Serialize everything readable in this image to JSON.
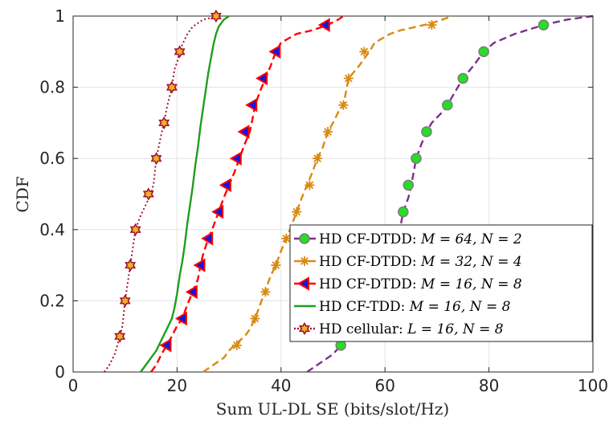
{
  "chart_data": {
    "type": "line",
    "xlabel": "Sum UL-DL SE (bits/slot/Hz)",
    "ylabel": "CDF",
    "xlim": [
      0,
      100
    ],
    "ylim": [
      0,
      1
    ],
    "xticks": [
      "0",
      "20",
      "40",
      "60",
      "80",
      "100"
    ],
    "yticks": [
      "0",
      "0.2",
      "0.4",
      "0.6",
      "0.8",
      "1"
    ],
    "grid": true,
    "legend_position": "lower-right",
    "series": [
      {
        "name": "HD CF-DTDD: M = 64, N = 2",
        "legend": {
          "prefix": "HD CF-DTDD: ",
          "math": "M = 64, N = 2"
        },
        "color": "#7E2F8E",
        "marker": "circle",
        "marker_face": "#22E022",
        "marker_edge": "#7E7E7E",
        "line_style": "dashed",
        "line": [
          [
            45,
            0
          ],
          [
            46,
            0.01
          ],
          [
            48,
            0.03
          ],
          [
            50,
            0.05
          ],
          [
            51.5,
            0.075
          ],
          [
            53,
            0.12
          ],
          [
            55,
            0.18
          ],
          [
            57,
            0.23
          ],
          [
            59,
            0.27
          ],
          [
            60,
            0.3
          ],
          [
            61,
            0.33
          ],
          [
            62,
            0.37
          ],
          [
            63,
            0.41
          ],
          [
            63.5,
            0.45
          ],
          [
            64.5,
            0.49
          ],
          [
            65,
            0.52
          ],
          [
            65.5,
            0.56
          ],
          [
            66,
            0.6
          ],
          [
            67,
            0.64
          ],
          [
            68,
            0.675
          ],
          [
            69,
            0.7
          ],
          [
            71,
            0.73
          ],
          [
            72,
            0.75
          ],
          [
            74,
            0.8
          ],
          [
            75,
            0.825
          ],
          [
            77,
            0.86
          ],
          [
            79,
            0.9
          ],
          [
            81,
            0.925
          ],
          [
            85,
            0.95
          ],
          [
            90.5,
            0.975
          ],
          [
            95,
            0.99
          ],
          [
            100,
            1
          ]
        ],
        "markers": [
          [
            51.5,
            0.075
          ],
          [
            63.5,
            0.45
          ],
          [
            64.5,
            0.525
          ],
          [
            66,
            0.6
          ],
          [
            68,
            0.675
          ],
          [
            72,
            0.75
          ],
          [
            75,
            0.825
          ],
          [
            79,
            0.9
          ],
          [
            90.5,
            0.975
          ]
        ]
      },
      {
        "name": "HD CF-DTDD: M = 32, N = 4",
        "legend": {
          "prefix": "HD CF-DTDD: ",
          "math": "M = 32, N = 4"
        },
        "color": "#D98A10",
        "marker": "asterisk",
        "marker_face": "#D98A10",
        "marker_edge": "#D98A10",
        "line_style": "dashed",
        "line": [
          [
            25,
            0
          ],
          [
            27,
            0.02
          ],
          [
            29,
            0.04
          ],
          [
            30,
            0.06
          ],
          [
            31,
            0.075
          ],
          [
            33,
            0.1
          ],
          [
            34,
            0.12
          ],
          [
            35,
            0.15
          ],
          [
            36,
            0.19
          ],
          [
            37,
            0.23
          ],
          [
            38,
            0.27
          ],
          [
            39,
            0.3
          ],
          [
            40,
            0.34
          ],
          [
            41,
            0.375
          ],
          [
            42,
            0.41
          ],
          [
            43,
            0.45
          ],
          [
            44,
            0.49
          ],
          [
            45,
            0.525
          ],
          [
            46,
            0.56
          ],
          [
            47,
            0.6
          ],
          [
            48,
            0.63
          ],
          [
            49,
            0.675
          ],
          [
            50,
            0.7
          ],
          [
            51,
            0.73
          ],
          [
            52,
            0.75
          ],
          [
            53,
            0.825
          ],
          [
            55,
            0.86
          ],
          [
            57,
            0.9
          ],
          [
            58,
            0.925
          ],
          [
            61,
            0.95
          ],
          [
            63,
            0.96
          ],
          [
            66,
            0.97
          ],
          [
            69,
            0.98
          ],
          [
            71,
            0.99
          ],
          [
            73,
            1
          ]
        ],
        "markers": [
          [
            31.5,
            0.075
          ],
          [
            35,
            0.15
          ],
          [
            37,
            0.225
          ],
          [
            39,
            0.3
          ],
          [
            41,
            0.375
          ],
          [
            43,
            0.45
          ],
          [
            45.5,
            0.525
          ],
          [
            47,
            0.6
          ],
          [
            49,
            0.675
          ],
          [
            52,
            0.75
          ],
          [
            53,
            0.825
          ],
          [
            56,
            0.9
          ],
          [
            69,
            0.975
          ]
        ]
      },
      {
        "name": "HD CF-DTDD: M = 16, N = 8",
        "legend": {
          "prefix": "HD CF-DTDD: ",
          "math": "M = 16, N = 8"
        },
        "color": "#FF0000",
        "marker": "triangle-left",
        "marker_face": "#1515E0",
        "marker_edge": "#FF0000",
        "line_style": "dashed",
        "line": [
          [
            15,
            0
          ],
          [
            16,
            0.02
          ],
          [
            17,
            0.05
          ],
          [
            18,
            0.075
          ],
          [
            19,
            0.1
          ],
          [
            20,
            0.13
          ],
          [
            21,
            0.15
          ],
          [
            22,
            0.19
          ],
          [
            23,
            0.225
          ],
          [
            24,
            0.26
          ],
          [
            24.5,
            0.3
          ],
          [
            25,
            0.33
          ],
          [
            26,
            0.375
          ],
          [
            27,
            0.41
          ],
          [
            28,
            0.45
          ],
          [
            29,
            0.49
          ],
          [
            30,
            0.525
          ],
          [
            31,
            0.56
          ],
          [
            32,
            0.6
          ],
          [
            33,
            0.64
          ],
          [
            34,
            0.675
          ],
          [
            34.5,
            0.71
          ],
          [
            35,
            0.75
          ],
          [
            36,
            0.79
          ],
          [
            37,
            0.825
          ],
          [
            38,
            0.86
          ],
          [
            39,
            0.9
          ],
          [
            40,
            0.925
          ],
          [
            43,
            0.95
          ],
          [
            46,
            0.96
          ],
          [
            49,
            0.975
          ],
          [
            51,
            0.99
          ],
          [
            52,
            1
          ]
        ],
        "markers": [
          [
            18,
            0.075
          ],
          [
            21,
            0.15
          ],
          [
            23,
            0.225
          ],
          [
            24.5,
            0.3
          ],
          [
            26,
            0.375
          ],
          [
            28,
            0.45
          ],
          [
            29.5,
            0.525
          ],
          [
            31.5,
            0.6
          ],
          [
            33,
            0.675
          ],
          [
            34.5,
            0.75
          ],
          [
            36.5,
            0.825
          ],
          [
            39,
            0.9
          ],
          [
            48.5,
            0.975
          ]
        ]
      },
      {
        "name": "HD CF-TDD: M = 16, N = 8",
        "legend": {
          "prefix": "HD CF-TDD: ",
          "math": "M = 16, N = 8"
        },
        "color": "#1E9E1E",
        "marker": "none",
        "line_style": "solid",
        "line": [
          [
            13,
            0
          ],
          [
            14,
            0.02
          ],
          [
            15,
            0.04
          ],
          [
            16,
            0.06
          ],
          [
            17,
            0.09
          ],
          [
            18,
            0.12
          ],
          [
            19,
            0.15
          ],
          [
            19.5,
            0.18
          ],
          [
            20,
            0.22
          ],
          [
            20.5,
            0.27
          ],
          [
            21,
            0.31
          ],
          [
            21.5,
            0.36
          ],
          [
            22,
            0.42
          ],
          [
            22.5,
            0.47
          ],
          [
            23,
            0.52
          ],
          [
            23.5,
            0.58
          ],
          [
            24,
            0.63
          ],
          [
            24.5,
            0.69
          ],
          [
            25,
            0.74
          ],
          [
            25.5,
            0.79
          ],
          [
            26,
            0.84
          ],
          [
            26.5,
            0.88
          ],
          [
            27,
            0.92
          ],
          [
            27.5,
            0.95
          ],
          [
            28,
            0.97
          ],
          [
            29,
            0.99
          ],
          [
            30,
            1
          ]
        ],
        "markers": []
      },
      {
        "name": "HD cellular: L = 16, N = 8",
        "legend": {
          "prefix": "HD cellular: ",
          "math": "L = 16, N = 8"
        },
        "color": "#A2142F",
        "marker": "hexagram",
        "marker_face": "#F0B020",
        "marker_edge": "#A2142F",
        "line_style": "dotted",
        "line": [
          [
            6,
            0
          ],
          [
            7,
            0.02
          ],
          [
            8,
            0.05
          ],
          [
            9,
            0.1
          ],
          [
            9.5,
            0.13
          ],
          [
            10,
            0.2
          ],
          [
            11,
            0.3
          ],
          [
            12,
            0.4
          ],
          [
            13,
            0.44
          ],
          [
            14,
            0.47
          ],
          [
            15,
            0.5
          ],
          [
            15.5,
            0.53
          ],
          [
            16,
            0.6
          ],
          [
            17,
            0.67
          ],
          [
            17.5,
            0.7
          ],
          [
            18,
            0.74
          ],
          [
            19,
            0.8
          ],
          [
            19.5,
            0.85
          ],
          [
            20,
            0.87
          ],
          [
            20.5,
            0.9
          ],
          [
            21,
            0.92
          ],
          [
            22,
            0.95
          ],
          [
            23,
            0.97
          ],
          [
            25,
            0.99
          ],
          [
            28,
            1
          ]
        ],
        "markers": [
          [
            9,
            0.1
          ],
          [
            10,
            0.2
          ],
          [
            11,
            0.3
          ],
          [
            12,
            0.4
          ],
          [
            14.5,
            0.5
          ],
          [
            16,
            0.6
          ],
          [
            17.5,
            0.7
          ],
          [
            19,
            0.8
          ],
          [
            20.5,
            0.9
          ],
          [
            27.5,
            1.0
          ]
        ]
      }
    ]
  }
}
